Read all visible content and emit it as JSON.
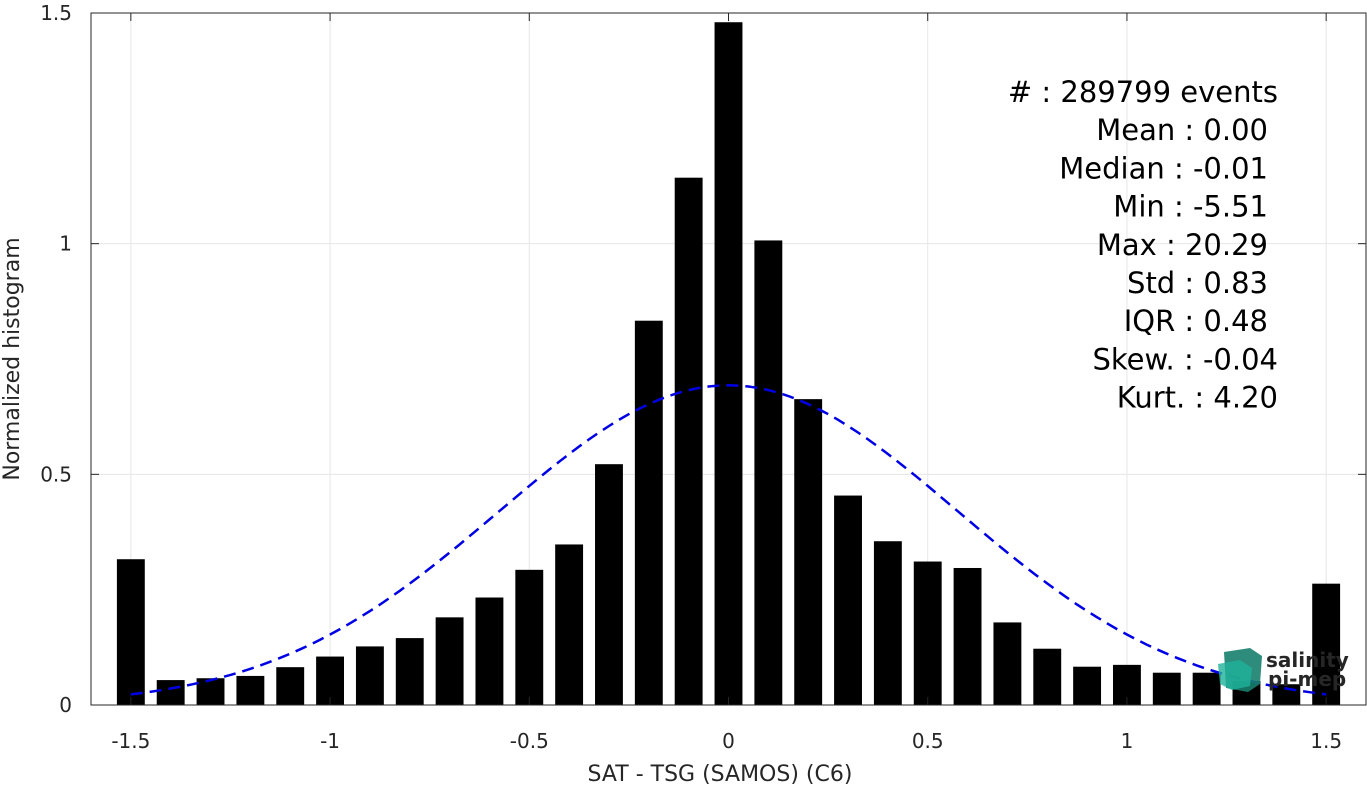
{
  "chart_data": {
    "type": "bar",
    "xlabel": "SAT - TSG (SAMOS) (C6)",
    "ylabel": "Normalized histogram",
    "xlim": [
      -1.6,
      1.6
    ],
    "ylim": [
      0,
      1.5
    ],
    "xticks": [
      -1.5,
      -1,
      -0.5,
      0,
      0.5,
      1,
      1.5
    ],
    "xtick_labels": [
      "-1.5",
      "-1",
      "-0.5",
      "0",
      "0.5",
      "1",
      "1.5"
    ],
    "yticks": [
      0,
      0.5,
      1,
      1.5
    ],
    "ytick_labels": [
      "0",
      "0.5",
      "1",
      "1.5"
    ],
    "grid": true,
    "bar_color": "#000000",
    "bars": {
      "x": [
        -1.5,
        -1.4,
        -1.3,
        -1.2,
        -1.1,
        -1.0,
        -0.9,
        -0.8,
        -0.7,
        -0.6,
        -0.5,
        -0.4,
        -0.3,
        -0.2,
        -0.1,
        0.0,
        0.1,
        0.2,
        0.3,
        0.4,
        0.5,
        0.6,
        0.7,
        0.8,
        0.9,
        1.0,
        1.1,
        1.2,
        1.3,
        1.4,
        1.5
      ],
      "values": [
        0.316,
        0.054,
        0.058,
        0.063,
        0.082,
        0.105,
        0.127,
        0.145,
        0.19,
        0.233,
        0.293,
        0.348,
        0.522,
        0.833,
        1.143,
        1.48,
        1.007,
        0.663,
        0.454,
        0.355,
        0.311,
        0.297,
        0.179,
        0.122,
        0.083,
        0.087,
        0.07,
        0.07,
        0.052,
        0.045,
        0.263
      ]
    },
    "fit_curve": {
      "type": "gaussian",
      "style": "dashed",
      "color": "#0000e6",
      "mean": 0.0,
      "std": 0.575,
      "peak": 0.693,
      "x_range": [
        -1.5,
        1.5
      ]
    },
    "annotations": [
      "#  : 289799 events",
      "Mean : 0.00",
      "Median : -0.01",
      "Min : -5.51",
      "Max : 20.29",
      "Std : 0.83",
      "IQR : 0.48",
      "Skew. : -0.04",
      "Kurt. : 4.20"
    ]
  },
  "logo": {
    "line1": "salinity",
    "line2": "pi-mep",
    "color1": "#1fb39a",
    "color2": "#17806e"
  }
}
